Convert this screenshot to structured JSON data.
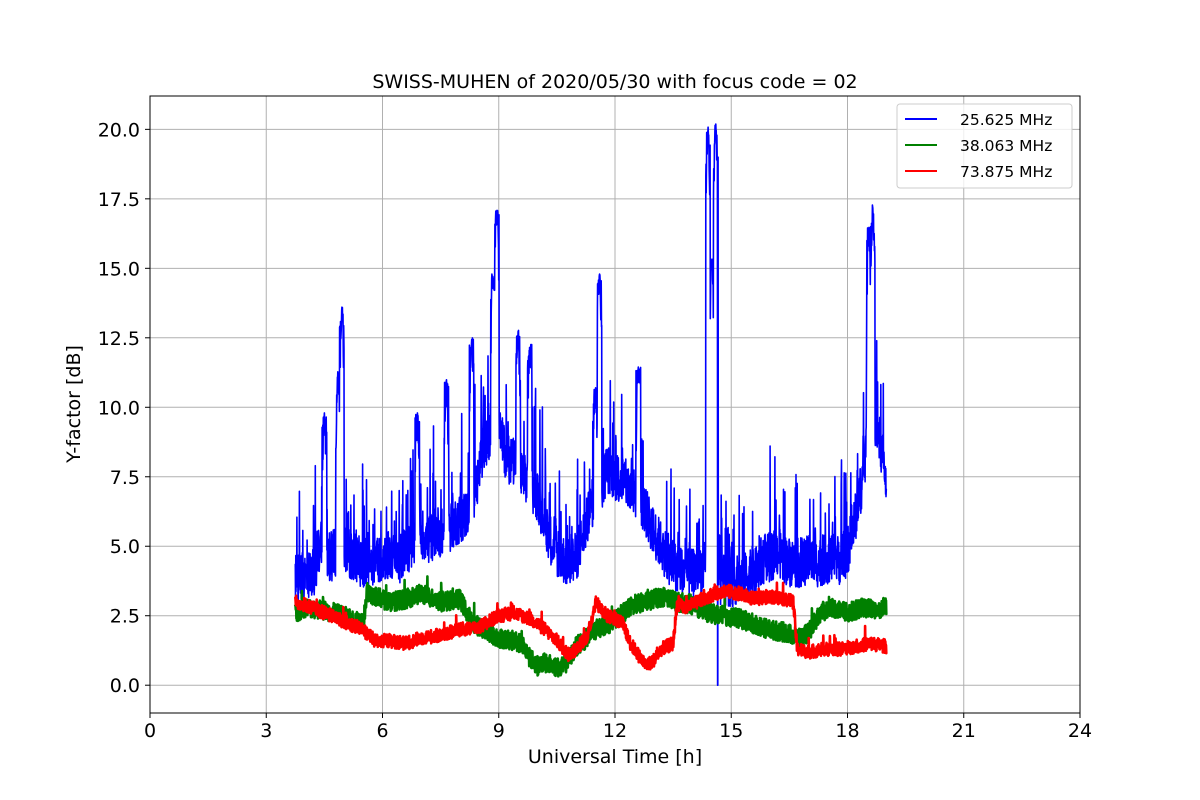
{
  "chart_data": {
    "type": "line",
    "title": "SWISS-MUHEN of 2020/05/30 with focus code = 02",
    "xlabel": "Universal Time [h]",
    "ylabel": "Y-factor [dB]",
    "xlim": [
      0,
      24
    ],
    "ylim": [
      -1,
      21.2
    ],
    "xticks": [
      0,
      3,
      6,
      9,
      12,
      15,
      18,
      21,
      24
    ],
    "xtick_labels": [
      "0",
      "3",
      "6",
      "9",
      "12",
      "15",
      "18",
      "21",
      "24"
    ],
    "yticks": [
      0,
      2.5,
      5,
      7.5,
      10,
      12.5,
      15,
      17.5,
      20
    ],
    "ytick_labels": [
      "0.0",
      "2.5",
      "5.0",
      "7.5",
      "10.0",
      "12.5",
      "15.0",
      "17.5",
      "20.0"
    ],
    "grid": true,
    "legend_position": "upper right",
    "series": [
      {
        "name": "25.625 MHz",
        "color": "#0000ff",
        "x": [
          3.75,
          4.0,
          4.25,
          4.45,
          4.6,
          4.8,
          4.95,
          5.2,
          5.5,
          5.8,
          6.1,
          6.4,
          6.7,
          7.0,
          7.2,
          7.4,
          7.6,
          7.8,
          8.0,
          8.2,
          8.4,
          8.6,
          8.8,
          8.9,
          9.0,
          9.2,
          9.4,
          9.6,
          9.8,
          10.0,
          10.2,
          10.4,
          10.6,
          10.8,
          11.0,
          11.2,
          11.4,
          11.6,
          11.8,
          12.0,
          12.2,
          12.4,
          12.6,
          12.8,
          13.0,
          13.2,
          13.4,
          13.6,
          13.8,
          14.0,
          14.2,
          14.4,
          14.5,
          14.6,
          14.8,
          15.0,
          15.2,
          15.4,
          15.6,
          15.8,
          16.0,
          16.2,
          16.4,
          16.6,
          16.8,
          17.0,
          17.2,
          17.4,
          17.6,
          17.8,
          18.0,
          18.2,
          18.4,
          18.6,
          18.8,
          19.0
        ],
        "y": [
          3.8,
          3.9,
          4.1,
          5.5,
          4.5,
          4.8,
          5.2,
          4.6,
          4.4,
          4.5,
          4.7,
          4.5,
          5.0,
          5.5,
          5.2,
          5.6,
          5.4,
          5.8,
          6.0,
          6.2,
          7.0,
          8.5,
          9.0,
          9.5,
          9.2,
          8.2,
          8.0,
          7.5,
          7.2,
          6.8,
          5.8,
          5.0,
          4.6,
          4.4,
          4.6,
          5.5,
          6.5,
          7.0,
          7.8,
          7.5,
          7.4,
          7.0,
          6.8,
          6.2,
          5.5,
          5.0,
          4.5,
          4.2,
          4.0,
          4.0,
          4.2,
          4.3,
          4.0,
          3.8,
          3.8,
          3.7,
          3.8,
          3.9,
          4.0,
          4.5,
          4.6,
          4.8,
          4.5,
          4.4,
          4.4,
          4.5,
          4.4,
          4.5,
          4.6,
          4.5,
          4.8,
          6.0,
          7.5,
          9.5,
          9.0,
          7.5
        ],
        "peaks": [
          {
            "x": 4.5,
            "y": 9.8
          },
          {
            "x": 4.85,
            "y": 11.3
          },
          {
            "x": 4.95,
            "y": 13.6
          },
          {
            "x": 6.9,
            "y": 9.8
          },
          {
            "x": 7.65,
            "y": 11.0
          },
          {
            "x": 8.3,
            "y": 12.5
          },
          {
            "x": 8.85,
            "y": 14.8
          },
          {
            "x": 8.95,
            "y": 17.1
          },
          {
            "x": 9.5,
            "y": 12.8
          },
          {
            "x": 9.8,
            "y": 12.3
          },
          {
            "x": 11.5,
            "y": 10.8
          },
          {
            "x": 11.6,
            "y": 14.8
          },
          {
            "x": 12.6,
            "y": 11.5
          },
          {
            "x": 14.4,
            "y": 20.1
          },
          {
            "x": 14.5,
            "y": 15.4
          },
          {
            "x": 14.6,
            "y": 20.2
          },
          {
            "x": 18.55,
            "y": 16.5
          },
          {
            "x": 18.65,
            "y": 17.3
          }
        ],
        "dips": [
          {
            "x": 14.65,
            "y": 0.0
          }
        ]
      },
      {
        "name": "38.063 MHz",
        "color": "#008000",
        "x": [
          3.75,
          4.0,
          4.5,
          5.0,
          5.5,
          5.6,
          5.8,
          6.2,
          6.6,
          7.0,
          7.5,
          8.0,
          8.3,
          8.6,
          9.0,
          9.4,
          9.6,
          9.8,
          10.0,
          10.2,
          10.4,
          10.6,
          10.8,
          11.0,
          11.2,
          11.5,
          11.8,
          12.0,
          12.2,
          12.5,
          12.8,
          13.0,
          13.3,
          13.6,
          14.0,
          14.4,
          14.8,
          15.2,
          15.6,
          16.0,
          16.4,
          16.8,
          17.0,
          17.3,
          17.6,
          18.0,
          18.4,
          18.8,
          19.0
        ],
        "y": [
          2.6,
          2.8,
          2.7,
          2.5,
          2.2,
          3.4,
          3.2,
          3.0,
          3.1,
          3.3,
          3.0,
          3.1,
          2.3,
          2.0,
          1.7,
          1.6,
          1.5,
          1.0,
          0.7,
          0.8,
          0.7,
          0.6,
          0.9,
          1.4,
          1.6,
          2.0,
          2.2,
          2.3,
          2.6,
          2.9,
          3.0,
          3.1,
          3.2,
          3.0,
          2.9,
          2.6,
          2.5,
          2.4,
          2.2,
          2.0,
          1.9,
          1.7,
          1.9,
          2.6,
          2.8,
          2.6,
          2.8,
          2.7,
          2.9
        ]
      },
      {
        "name": "73.875 MHz",
        "color": "#ff0000",
        "x": [
          3.75,
          4.0,
          4.5,
          5.0,
          5.5,
          5.8,
          6.2,
          6.6,
          7.0,
          7.5,
          8.0,
          8.5,
          9.0,
          9.4,
          9.8,
          10.2,
          10.5,
          10.8,
          11.0,
          11.3,
          11.5,
          11.8,
          12.0,
          12.2,
          12.4,
          12.6,
          12.8,
          13.0,
          13.2,
          13.5,
          13.6,
          13.8,
          14.0,
          14.4,
          14.8,
          15.2,
          15.6,
          16.0,
          16.4,
          16.6,
          16.7,
          17.0,
          17.4,
          17.8,
          18.2,
          18.6,
          19.0
        ],
        "y": [
          3.0,
          2.9,
          2.6,
          2.3,
          2.0,
          1.6,
          1.6,
          1.5,
          1.7,
          1.8,
          2.0,
          2.1,
          2.5,
          2.6,
          2.4,
          2.0,
          1.6,
          1.1,
          1.3,
          1.8,
          3.0,
          2.5,
          2.4,
          2.2,
          1.5,
          1.1,
          0.7,
          0.9,
          1.3,
          1.5,
          2.9,
          2.8,
          2.9,
          3.2,
          3.4,
          3.3,
          3.1,
          3.2,
          3.1,
          3.0,
          1.3,
          1.2,
          1.3,
          1.3,
          1.4,
          1.5,
          1.4
        ]
      }
    ]
  }
}
